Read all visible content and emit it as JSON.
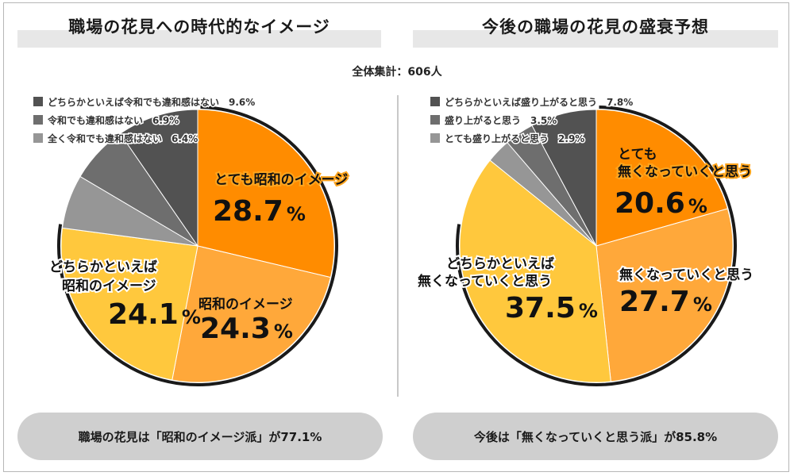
{
  "total": "全体集計：606人",
  "left": {
    "title": "職場の花見への時代的なイメージ",
    "summary": "職場の花見は「昭和のイメージ派」が77.1%",
    "legend": [
      {
        "label": "どちらかといえば令和でも違和感はない　9.6%"
      },
      {
        "label": "令和でも違和感はない　6.9%"
      },
      {
        "label": "全く令和でも違和感はない　6.4%"
      }
    ],
    "labels": {
      "s1_name": "とても昭和のイメージ",
      "s1_num": "28.7",
      "s1_unit": "%",
      "s2_name": "昭和のイメージ",
      "s2_num": "24.3",
      "s2_unit": "%",
      "s3_name_1": "どちらかといえば",
      "s3_name_2": "昭和のイメージ",
      "s3_num": "24.1",
      "s3_unit": "%"
    }
  },
  "right": {
    "title": "今後の職場の花見の盛衰予想",
    "summary": "今後は「無くなっていくと思う派」が85.8%",
    "legend": [
      {
        "label": "どちらかといえば盛り上がると思う　7.8%"
      },
      {
        "label": "盛り上がると思う　3.5%"
      },
      {
        "label": "とても盛り上がると思う　2.9%"
      }
    ],
    "labels": {
      "s1_name_1": "とても",
      "s1_name_2": "無くなっていくと思う",
      "s1_num": "20.6",
      "s1_unit": "%",
      "s2_name": "無くなっていくと思う",
      "s2_num": "27.7",
      "s2_unit": "%",
      "s3_name_1": "どちらかといえば",
      "s3_name_2": "無くなっていくと思う",
      "s3_num": "37.5",
      "s3_unit": "%"
    }
  },
  "chart_data": [
    {
      "type": "pie",
      "title": "職場の花見への時代的なイメージ",
      "categories": [
        "とても昭和のイメージ",
        "昭和のイメージ",
        "どちらかといえば昭和のイメージ",
        "全く令和でも違和感はない",
        "令和でも違和感はない",
        "どちらかといえば令和でも違和感はない"
      ],
      "values": [
        28.7,
        24.3,
        24.1,
        6.4,
        6.9,
        9.6
      ],
      "colors": [
        "#ff8c00",
        "#ffa83a",
        "#ffc83d",
        "#969696",
        "#6e6e6e",
        "#525252"
      ]
    },
    {
      "type": "pie",
      "title": "今後の職場の花見の盛衰予想",
      "categories": [
        "とても無くなっていくと思う",
        "無くなっていくと思う",
        "どちらかといえば無くなっていくと思う",
        "とても盛り上がると思う",
        "盛り上がると思う",
        "どちらかといえば盛り上がると思う"
      ],
      "values": [
        20.6,
        27.7,
        37.5,
        2.9,
        3.5,
        7.8
      ],
      "colors": [
        "#ff8c00",
        "#ffa83a",
        "#ffc83d",
        "#969696",
        "#6e6e6e",
        "#525252"
      ]
    }
  ]
}
